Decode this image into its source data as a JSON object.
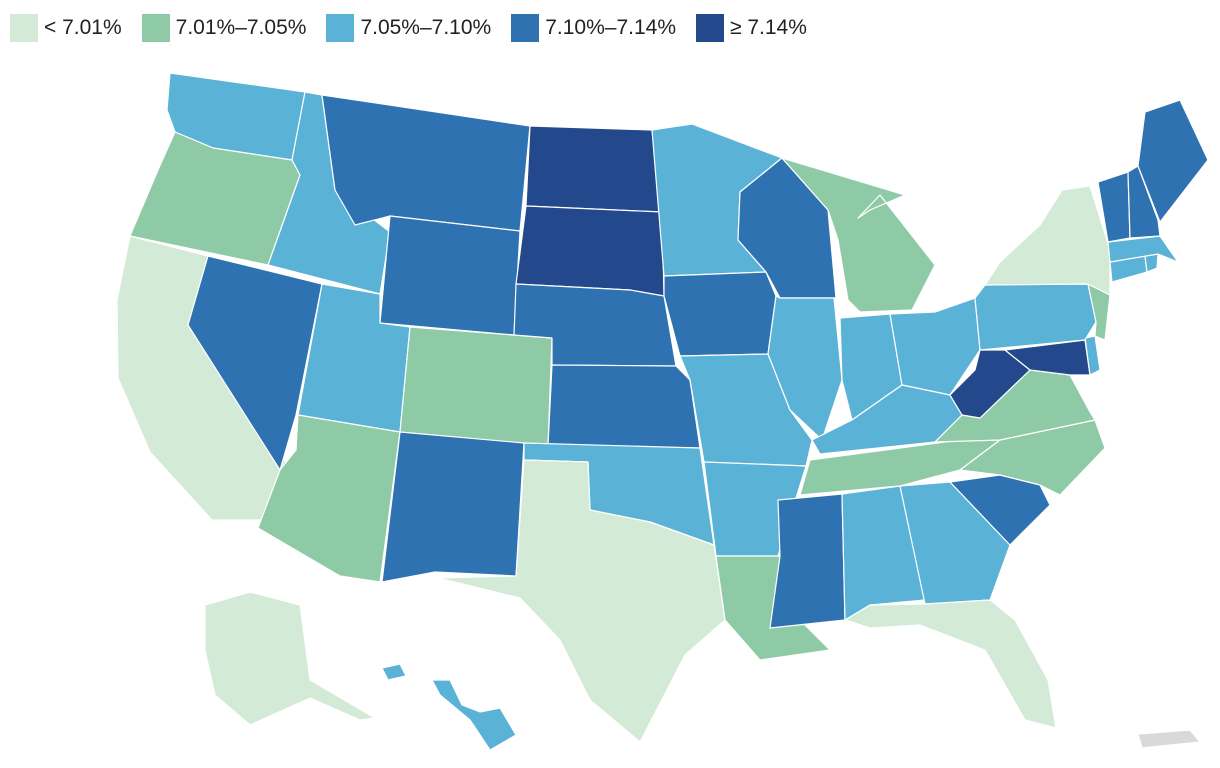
{
  "legend": {
    "bins": [
      {
        "id": "b1",
        "label": "< 7.01%",
        "color": "#d3ead6"
      },
      {
        "id": "b2",
        "label": "7.01%–7.05%",
        "color": "#8fcaa6"
      },
      {
        "id": "b3",
        "label": "7.05%–7.10%",
        "color": "#5ab2d6"
      },
      {
        "id": "b4",
        "label": "7.10%–7.14%",
        "color": "#2f72b1"
      },
      {
        "id": "b5",
        "label": "≥ 7.14%",
        "color": "#23488b"
      }
    ],
    "no_data_color": "#d9d9d9"
  },
  "map_data": {
    "type": "choropleth-us-states",
    "states": {
      "WA": "b3",
      "OR": "b2",
      "CA": "b1",
      "NV": "b4",
      "ID": "b3",
      "MT": "b4",
      "WY": "b4",
      "UT": "b3",
      "AZ": "b2",
      "CO": "b2",
      "NM": "b4",
      "ND": "b5",
      "SD": "b5",
      "NE": "b4",
      "KS": "b4",
      "OK": "b3",
      "TX": "b1",
      "MN": "b3",
      "IA": "b4",
      "MO": "b3",
      "AR": "b3",
      "LA": "b2",
      "WI": "b4",
      "IL": "b3",
      "MI": "b2",
      "IN": "b3",
      "OH": "b3",
      "KY": "b3",
      "TN": "b2",
      "MS": "b4",
      "AL": "b3",
      "GA": "b3",
      "FL": "b1",
      "SC": "b4",
      "NC": "b2",
      "VA": "b2",
      "WV": "b5",
      "MD": "b5",
      "DE": "b3",
      "PA": "b3",
      "NJ": "b2",
      "NY": "b1",
      "CT": "b3",
      "RI": "b3",
      "MA": "b3",
      "VT": "b4",
      "NH": "b4",
      "ME": "b4",
      "AK": "b1",
      "HI": "b3",
      "PR": "no-data"
    }
  }
}
